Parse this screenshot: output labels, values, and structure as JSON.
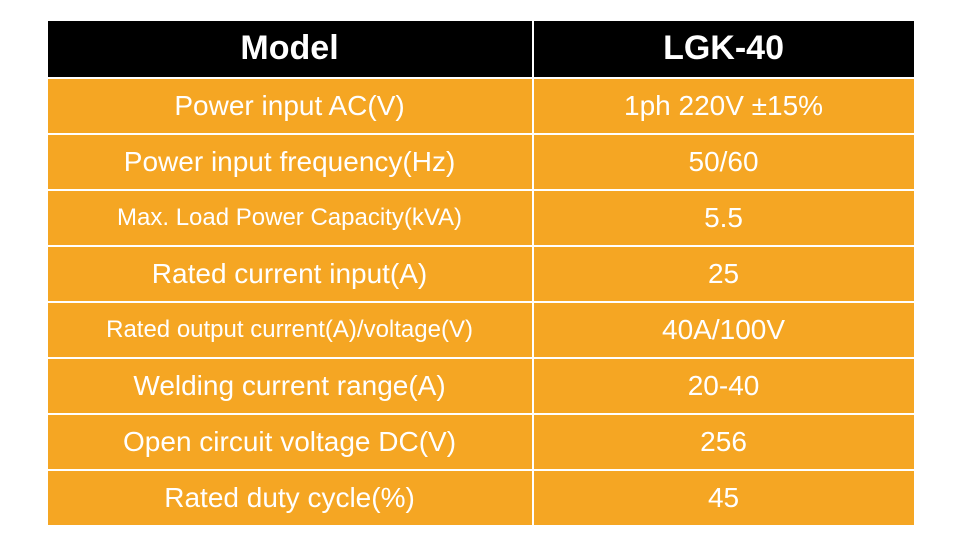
{
  "table": {
    "header": {
      "label": "Model",
      "value": "LGK-40"
    },
    "rows": [
      {
        "label": "Power input AC(V)",
        "value": "1ph 220V ±15%",
        "label_fs": 28,
        "value_fs": 28
      },
      {
        "label": "Power input frequency(Hz)",
        "value": "50/60",
        "label_fs": 28,
        "value_fs": 28
      },
      {
        "label": "Max. Load Power Capacity(kVA)",
        "value": "5.5",
        "label_fs": 24,
        "value_fs": 28
      },
      {
        "label": "Rated current input(A)",
        "value": "25",
        "label_fs": 28,
        "value_fs": 28
      },
      {
        "label": "Rated output current(A)/voltage(V)",
        "value": "40A/100V",
        "label_fs": 24,
        "value_fs": 28
      },
      {
        "label": "Welding current range(A)",
        "value": "20-40",
        "label_fs": 28,
        "value_fs": 28
      },
      {
        "label": "Open circuit voltage DC(V)",
        "value": "256",
        "label_fs": 28,
        "value_fs": 28
      },
      {
        "label": "Rated duty cycle(%)",
        "value": "45",
        "label_fs": 28,
        "value_fs": 28
      }
    ],
    "colors": {
      "header_bg": "#000000",
      "body_bg": "#f5a623",
      "text": "#ffffff",
      "border": "#ffffff"
    },
    "header_fontsize": 34
  }
}
